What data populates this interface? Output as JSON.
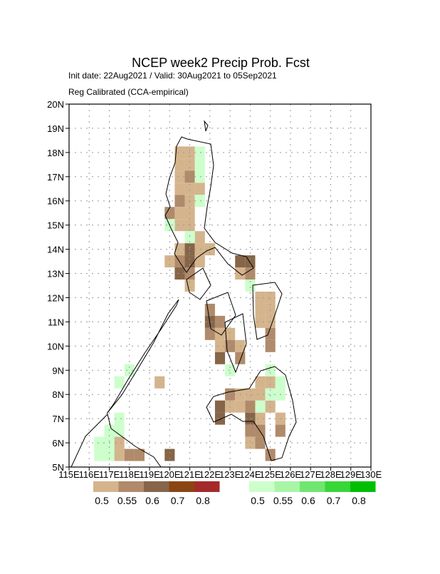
{
  "title": "NCEP week2 Precip Prob. Fcst",
  "subtitle": "Init date: 22Aug2021 / Valid: 30Aug2021 to 05Sep2021",
  "method": "Reg Calibrated (CCA-empirical)",
  "map": {
    "xlim": [
      115,
      130
    ],
    "ylim": [
      5,
      20
    ],
    "grid": true,
    "cell_size": 0.5,
    "xticks": [
      {
        "value": 115,
        "label": "115E"
      },
      {
        "value": 116,
        "label": "116E"
      },
      {
        "value": 117,
        "label": "117E"
      },
      {
        "value": 118,
        "label": "118E"
      },
      {
        "value": 119,
        "label": "119E"
      },
      {
        "value": 120,
        "label": "120E"
      },
      {
        "value": 121,
        "label": "121E"
      },
      {
        "value": 122,
        "label": "122E"
      },
      {
        "value": 123,
        "label": "123E"
      },
      {
        "value": 124,
        "label": "124E"
      },
      {
        "value": 125,
        "label": "125E"
      },
      {
        "value": 126,
        "label": "126E"
      },
      {
        "value": 127,
        "label": "127E"
      },
      {
        "value": 128,
        "label": "128E"
      },
      {
        "value": 129,
        "label": "129E"
      },
      {
        "value": 130,
        "label": "130E"
      }
    ],
    "yticks": [
      {
        "value": 5,
        "label": "5N"
      },
      {
        "value": 6,
        "label": "6N"
      },
      {
        "value": 7,
        "label": "7N"
      },
      {
        "value": 8,
        "label": "8N"
      },
      {
        "value": 9,
        "label": "9N"
      },
      {
        "value": 10,
        "label": "10N"
      },
      {
        "value": 11,
        "label": "11N"
      },
      {
        "value": 12,
        "label": "12N"
      },
      {
        "value": 13,
        "label": "13N"
      },
      {
        "value": 14,
        "label": "14N"
      },
      {
        "value": 15,
        "label": "15N"
      },
      {
        "value": 16,
        "label": "16N"
      },
      {
        "value": 17,
        "label": "17N"
      },
      {
        "value": 18,
        "label": "18N"
      },
      {
        "value": 19,
        "label": "19N"
      },
      {
        "value": 20,
        "label": "20N"
      }
    ]
  },
  "legend_below": {
    "levels": [
      0.5,
      0.55,
      0.6,
      0.7,
      0.8
    ],
    "colors": [
      "#d4b48c",
      "#b08a6a",
      "#866548",
      "#8b4513",
      "#a52a2a"
    ]
  },
  "legend_above": {
    "levels": [
      0.5,
      0.55,
      0.6,
      0.7,
      0.8
    ],
    "colors": [
      "#ccffcc",
      "#a8f5a8",
      "#70e670",
      "#38d638",
      "#00bf00"
    ]
  },
  "below_cells": [
    [
      120.5,
      18,
      0.5
    ],
    [
      121,
      18,
      0.5
    ],
    [
      120.5,
      17.5,
      0.5
    ],
    [
      121,
      17.5,
      0.5
    ],
    [
      120.5,
      17,
      0.5
    ],
    [
      121,
      17,
      0.55
    ],
    [
      120.5,
      16.5,
      0.5
    ],
    [
      121,
      16.5,
      0.5
    ],
    [
      121.5,
      16.5,
      0.5
    ],
    [
      120.5,
      16,
      0.55
    ],
    [
      121,
      16,
      0.5
    ],
    [
      120,
      15.5,
      0.55
    ],
    [
      120.5,
      15.5,
      0.5
    ],
    [
      121,
      15.5,
      0.5
    ],
    [
      120.5,
      15,
      0.5
    ],
    [
      121,
      15,
      0.5
    ],
    [
      121.5,
      14.5,
      0.5
    ],
    [
      120.5,
      14,
      0.5
    ],
    [
      121,
      14,
      0.6
    ],
    [
      121.5,
      14,
      0.5
    ],
    [
      122,
      14,
      0.5
    ],
    [
      120,
      13.5,
      0.5
    ],
    [
      120.5,
      13.5,
      0.55
    ],
    [
      121,
      13.5,
      0.6
    ],
    [
      121.5,
      13.5,
      0.5
    ],
    [
      123.5,
      13.5,
      0.6
    ],
    [
      124,
      13.5,
      0.6
    ],
    [
      120.5,
      13,
      0.6
    ],
    [
      121,
      13,
      0.55
    ],
    [
      123.5,
      13,
      0.5
    ],
    [
      124,
      13,
      0.55
    ],
    [
      121,
      12.5,
      0.5
    ],
    [
      124.5,
      12,
      0.5
    ],
    [
      125,
      12,
      0.5
    ],
    [
      122,
      11.5,
      0.55
    ],
    [
      124.5,
      11.5,
      0.5
    ],
    [
      125,
      11.5,
      0.5
    ],
    [
      122,
      11,
      0.6
    ],
    [
      122.5,
      11,
      0.55
    ],
    [
      124.5,
      11,
      0.5
    ],
    [
      125,
      11,
      0.5
    ],
    [
      122,
      10.5,
      0.55
    ],
    [
      122.5,
      10.5,
      0.5
    ],
    [
      123,
      10.5,
      0.5
    ],
    [
      125,
      10.5,
      0.55
    ],
    [
      122.5,
      10,
      0.5
    ],
    [
      123,
      10,
      0.55
    ],
    [
      123.5,
      10,
      0.5
    ],
    [
      125,
      10,
      0.55
    ],
    [
      122.5,
      9.5,
      0.6
    ],
    [
      123.5,
      9.5,
      0.55
    ],
    [
      124.5,
      8.5,
      0.5
    ],
    [
      125,
      8.5,
      0.5
    ],
    [
      123,
      8,
      0.55
    ],
    [
      123.5,
      8,
      0.5
    ],
    [
      124,
      8,
      0.5
    ],
    [
      124.5,
      8,
      0.5
    ],
    [
      122.5,
      7.5,
      0.6
    ],
    [
      123,
      7.5,
      0.5
    ],
    [
      123.5,
      7.5,
      0.5
    ],
    [
      124,
      7.5,
      0.55
    ],
    [
      125,
      7.5,
      0.5
    ],
    [
      122.5,
      7,
      0.6
    ],
    [
      124,
      7,
      0.6
    ],
    [
      124.5,
      7,
      0.5
    ],
    [
      125.5,
      7,
      0.5
    ],
    [
      124,
      6.5,
      0.55
    ],
    [
      124.5,
      6.5,
      0.55
    ],
    [
      125.5,
      6.5,
      0.55
    ],
    [
      124,
      6,
      0.5
    ],
    [
      124.5,
      6,
      0.55
    ],
    [
      125,
      5.5,
      0.55
    ],
    [
      117.5,
      6,
      0.5
    ],
    [
      117.5,
      5.5,
      0.5
    ],
    [
      118,
      5.5,
      0.55
    ],
    [
      118.5,
      5.5,
      0.55
    ],
    [
      119.5,
      8.5,
      0.5
    ],
    [
      120,
      5.5,
      0.6
    ]
  ],
  "above_cells": [
    [
      121.5,
      18,
      0.5
    ],
    [
      121.5,
      17.5,
      0.5
    ],
    [
      121.5,
      17,
      0.5
    ],
    [
      121.5,
      16,
      0.5
    ],
    [
      120,
      15,
      0.5
    ],
    [
      121,
      14.5,
      0.5
    ],
    [
      123,
      9,
      0.5
    ],
    [
      125,
      9,
      0.5
    ],
    [
      125.5,
      8.5,
      0.5
    ],
    [
      125,
      8,
      0.5
    ],
    [
      125.5,
      8,
      0.5
    ],
    [
      124.5,
      7.5,
      0.5
    ],
    [
      117.5,
      7,
      0.5
    ],
    [
      117,
      6.5,
      0.5
    ],
    [
      117.5,
      6.5,
      0.5
    ],
    [
      116.5,
      6,
      0.5
    ],
    [
      117,
      6,
      0.5
    ],
    [
      116.5,
      5.5,
      0.5
    ],
    [
      117,
      5.5,
      0.5
    ],
    [
      117.5,
      8.5,
      0.5
    ],
    [
      118,
      9,
      0.5
    ],
    [
      124,
      12.5,
      0.5
    ]
  ]
}
